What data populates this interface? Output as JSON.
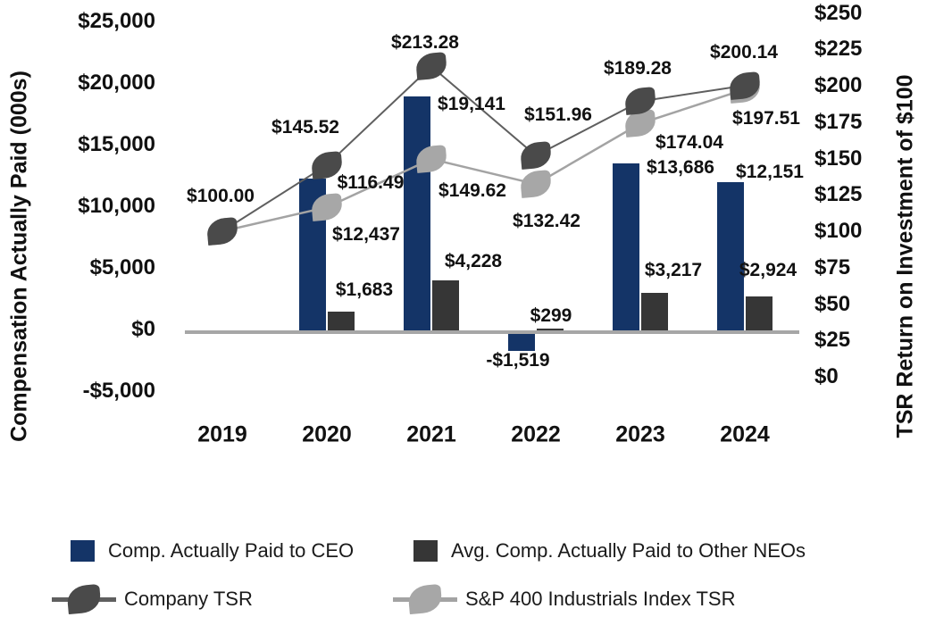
{
  "chart_data": {
    "type": "combo-bar-line",
    "categories": [
      "2019",
      "2020",
      "2021",
      "2022",
      "2023",
      "2024"
    ],
    "left_axis": {
      "title": "Compensation Actually Paid (000s)",
      "range": [
        -5000,
        25000
      ],
      "tick_step": 5000,
      "tick_labels": [
        "$25,000",
        "$20,000",
        "$15,000",
        "$10,000",
        "$5,000",
        "$0",
        "-$5,000"
      ],
      "tick_values": [
        25000,
        20000,
        15000,
        10000,
        5000,
        0,
        -5000
      ]
    },
    "right_axis": {
      "title": "TSR Return on Investment of $100",
      "range": [
        0,
        250
      ],
      "tick_step": 25,
      "tick_labels": [
        "$250",
        "$225",
        "$200",
        "$175",
        "$150",
        "$125",
        "$100",
        "$75",
        "$50",
        "$25",
        "$0"
      ],
      "tick_values": [
        250,
        225,
        200,
        175,
        150,
        125,
        100,
        75,
        50,
        25,
        0
      ]
    },
    "grid": "off",
    "legend_position": "bottom",
    "series": [
      {
        "id": "ceo",
        "name": "Comp. Actually Paid to CEO",
        "type": "bar",
        "axis": "left",
        "color": "#143467",
        "values": [
          null,
          12437,
          19141,
          -1519,
          13686,
          12151
        ],
        "labels": [
          null,
          "$12,437",
          "$19,141",
          "-$1,519",
          "$13,686",
          "$12,151"
        ]
      },
      {
        "id": "neo",
        "name": "Avg. Comp. Actually Paid to Other NEOs",
        "type": "bar",
        "axis": "left",
        "color": "#363636",
        "values": [
          null,
          1683,
          4228,
          299,
          3217,
          2924
        ],
        "labels": [
          null,
          "$1,683",
          "$4,228",
          "$299",
          "$3,217",
          "$2,924"
        ]
      },
      {
        "id": "company",
        "name": "Company TSR",
        "type": "line",
        "axis": "right",
        "marker_color": "#4a4a4a",
        "line_color": "#5f5f5f",
        "values": [
          100,
          145.52,
          213.28,
          151.96,
          189.28,
          200.14
        ],
        "labels": [
          "$100.00",
          "$145.52",
          "$213.28",
          "$151.96",
          "$189.28",
          "$200.14"
        ]
      },
      {
        "id": "sp",
        "name": "S&P 400 Industrials Index TSR",
        "type": "line",
        "axis": "right",
        "marker_color": "#a7a7a7",
        "line_color": "#a3a3a3",
        "values": [
          100,
          116.49,
          149.62,
          132.42,
          174.04,
          197.51
        ],
        "labels": [
          null,
          "$116.49",
          "$149.62",
          "$132.42",
          "$174.04",
          "$197.51"
        ]
      }
    ]
  }
}
